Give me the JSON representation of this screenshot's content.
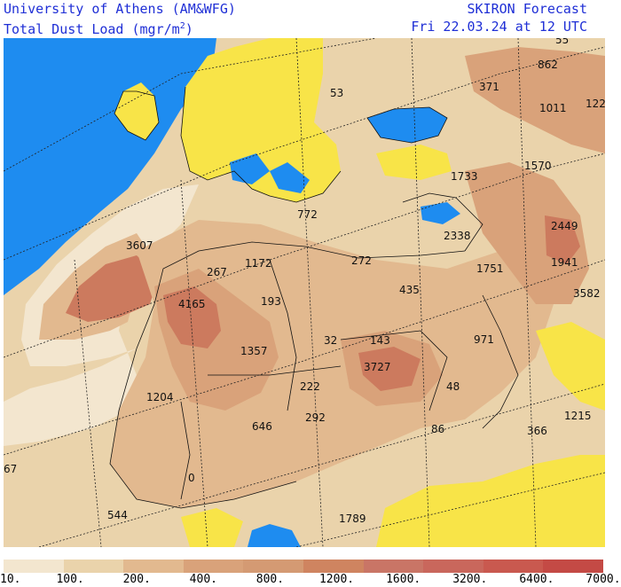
{
  "header": {
    "institution": "University of Athens (AM&WFG)",
    "product": "Total Dust Load (mgr/m",
    "product_sup": "2",
    "product_end": ")",
    "forecast": "SKIRON Forecast",
    "valid_time": "Fri 22.03.24 at 12 UTC"
  },
  "colors": {
    "sea": "#1e8cf0",
    "no_dust": "#f8e448",
    "level_1": "#f3e6cf",
    "level_2": "#ead3ab",
    "level_3": "#e2b98f",
    "level_4": "#d9a27a",
    "level_5": "#cc7a5e",
    "level_6": "#c56a5a",
    "coastline": "#111111",
    "graticule": "#222222"
  },
  "legend": {
    "colors": [
      "#f3e6cf",
      "#ead3ab",
      "#e2b98f",
      "#d9a27a",
      "#d49a73",
      "#cf8460",
      "#c97566",
      "#c9675c",
      "#c9594f",
      "#c44a45"
    ],
    "ticks": [
      "10.",
      "100.",
      "200.",
      "400.",
      "800.",
      "1200.",
      "1600.",
      "3200.",
      "6400.",
      "7000."
    ]
  },
  "values": [
    {
      "text": "53"
    },
    {
      "text": "862"
    },
    {
      "text": "371"
    },
    {
      "text": "1011"
    },
    {
      "text": "122"
    },
    {
      "text": "55"
    },
    {
      "text": "1733"
    },
    {
      "text": "1570"
    },
    {
      "text": "772"
    },
    {
      "text": "2338"
    },
    {
      "text": "2449"
    },
    {
      "text": "3607"
    },
    {
      "text": "267"
    },
    {
      "text": "1172"
    },
    {
      "text": "272"
    },
    {
      "text": "1941"
    },
    {
      "text": "1751"
    },
    {
      "text": "435"
    },
    {
      "text": "3582"
    },
    {
      "text": "4165"
    },
    {
      "text": "193"
    },
    {
      "text": "32"
    },
    {
      "text": "143"
    },
    {
      "text": "971"
    },
    {
      "text": "1357"
    },
    {
      "text": "3727"
    },
    {
      "text": "1204"
    },
    {
      "text": "222"
    },
    {
      "text": "48"
    },
    {
      "text": "292"
    },
    {
      "text": "646"
    },
    {
      "text": "86"
    },
    {
      "text": "366"
    },
    {
      "text": "1215"
    },
    {
      "text": "67"
    },
    {
      "text": "0"
    },
    {
      "text": "544"
    },
    {
      "text": "1789"
    }
  ]
}
